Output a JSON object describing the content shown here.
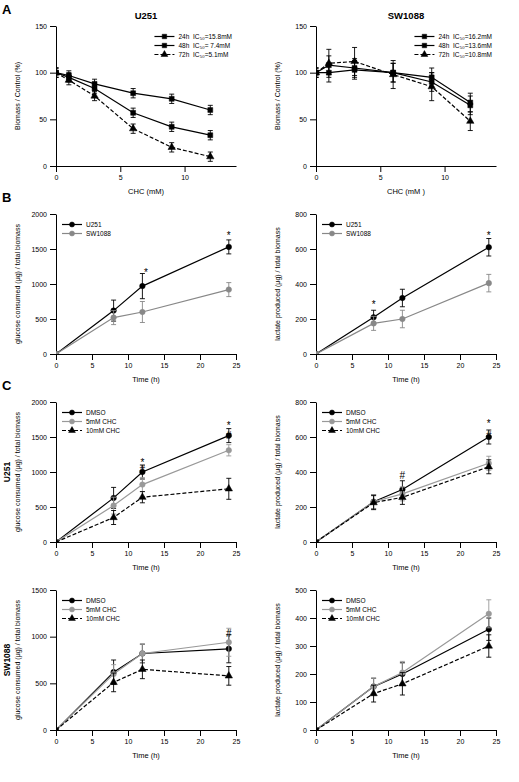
{
  "chart_data": [
    {
      "type": "line",
      "panel_label": "A",
      "title": "U251",
      "x": [
        0,
        1,
        3,
        6,
        9,
        12
      ],
      "series": [
        {
          "name": "24h  IC₅₀=15.8mM",
          "values": [
            100,
            97,
            88,
            78,
            72,
            60
          ],
          "errors": [
            5,
            5,
            5,
            5,
            5,
            5
          ],
          "color": "#000000",
          "line_style": "solid",
          "marker": "square"
        },
        {
          "name": "48h  IC₅₀= 7.4mM",
          "values": [
            100,
            95,
            83,
            57,
            42,
            33
          ],
          "errors": [
            5,
            5,
            5,
            5,
            5,
            5
          ],
          "color": "#000000",
          "line_style": "solid",
          "marker": "square"
        },
        {
          "name": "72h  IC₅₀=5.1mM",
          "values": [
            100,
            92,
            75,
            40,
            20,
            10
          ],
          "errors": [
            5,
            5,
            5,
            5,
            5,
            5
          ],
          "color": "#000000",
          "line_style": "dashed",
          "marker": "triangle"
        }
      ],
      "xlabel": "CHC (mM)",
      "ylabel": "Biomass / Control (%)",
      "xlim": [
        0,
        14
      ],
      "ylim": [
        0,
        150
      ],
      "xticks": [
        0,
        5,
        10
      ],
      "yticks": [
        0,
        50,
        100,
        150
      ],
      "legend": "upper right"
    },
    {
      "type": "line",
      "title": "SW1088",
      "x": [
        0,
        1,
        3,
        6,
        9,
        12
      ],
      "series": [
        {
          "name": "24h  IC₅₀=16.2mM",
          "values": [
            100,
            100,
            103,
            100,
            95,
            68
          ],
          "errors": [
            5,
            10,
            10,
            10,
            10,
            10
          ],
          "color": "#000000",
          "line_style": "solid",
          "marker": "square"
        },
        {
          "name": "48h  IC₅₀=13.6mM",
          "values": [
            100,
            108,
            105,
            100,
            90,
            65
          ],
          "errors": [
            5,
            10,
            10,
            10,
            10,
            10
          ],
          "color": "#000000",
          "line_style": "solid",
          "marker": "square"
        },
        {
          "name": "72h  IC₅₀=10.8mM",
          "values": [
            100,
            110,
            112,
            98,
            85,
            48
          ],
          "errors": [
            5,
            15,
            15,
            15,
            15,
            10
          ],
          "color": "#000000",
          "line_style": "dashed",
          "marker": "triangle"
        }
      ],
      "xlabel": "CHC (mM )",
      "ylabel": "Biomass / Control (%)",
      "xlim": [
        0,
        14
      ],
      "ylim": [
        0,
        150
      ],
      "xticks": [
        0,
        5,
        10
      ],
      "yticks": [
        0,
        50,
        100,
        150
      ],
      "legend": "upper right"
    },
    {
      "type": "line",
      "panel_label": "B",
      "x": [
        0,
        8,
        12,
        24
      ],
      "series": [
        {
          "name": "U251",
          "values": [
            0,
            620,
            970,
            1530
          ],
          "errors": [
            0,
            150,
            180,
            100
          ],
          "color": "#000000",
          "line_style": "solid",
          "marker": "circle"
        },
        {
          "name": "SW1088",
          "values": [
            0,
            520,
            600,
            920
          ],
          "errors": [
            0,
            100,
            150,
            100
          ],
          "color": "#888888",
          "line_style": "solid",
          "marker": "circle"
        }
      ],
      "xlabel": "Time (h)",
      "ylabel": "glucose consumed (μg) / total biomass",
      "xlim": [
        0,
        25
      ],
      "ylim": [
        0,
        2000
      ],
      "xticks": [
        0,
        5,
        10,
        15,
        20,
        25
      ],
      "yticks": [
        0,
        500,
        1000,
        1500,
        2000
      ],
      "annotations": [
        {
          "x": 12.5,
          "y": 1110,
          "text": "*"
        },
        {
          "x": 24,
          "y": 1650,
          "text": "*"
        }
      ],
      "legend": "upper left"
    },
    {
      "type": "line",
      "x": [
        0,
        8,
        12,
        24
      ],
      "series": [
        {
          "name": "U251",
          "values": [
            0,
            210,
            320,
            610
          ],
          "errors": [
            0,
            40,
            50,
            50
          ],
          "color": "#000000",
          "line_style": "solid",
          "marker": "circle"
        },
        {
          "name": "SW1088",
          "values": [
            0,
            175,
            200,
            405
          ],
          "errors": [
            0,
            40,
            50,
            50
          ],
          "color": "#888888",
          "line_style": "solid",
          "marker": "circle"
        }
      ],
      "xlabel": "Time (h)",
      "ylabel": "lactate produced (μg) / total biomass",
      "xlim": [
        0,
        25
      ],
      "ylim": [
        0,
        800
      ],
      "xticks": [
        0,
        5,
        10,
        15,
        20,
        25
      ],
      "yticks": [
        0,
        200,
        400,
        600,
        800
      ],
      "annotations": [
        {
          "x": 8,
          "y": 265,
          "text": "*"
        },
        {
          "x": 24,
          "y": 660,
          "text": "*"
        }
      ],
      "legend": "upper left"
    },
    {
      "type": "line",
      "panel_label": "C",
      "row_label": "U251",
      "x": [
        0,
        8,
        12,
        24
      ],
      "series": [
        {
          "name": "DMSO",
          "values": [
            0,
            630,
            1000,
            1520
          ],
          "errors": [
            0,
            150,
            100,
            100
          ],
          "color": "#000000",
          "line_style": "solid",
          "marker": "circle"
        },
        {
          "name": "5mM CHC",
          "values": [
            0,
            520,
            820,
            1310
          ],
          "errors": [
            0,
            120,
            100,
            80
          ],
          "color": "#999999",
          "line_style": "solid",
          "marker": "circle"
        },
        {
          "name": "10mM CHC",
          "values": [
            0,
            350,
            640,
            760
          ],
          "errors": [
            0,
            100,
            80,
            150
          ],
          "color": "#000000",
          "line_style": "dashed",
          "marker": "triangle"
        }
      ],
      "xlabel": "Time (h)",
      "ylabel": "glucose consumed (μg) / total biomass",
      "xlim": [
        0,
        25
      ],
      "ylim": [
        0,
        2000
      ],
      "xticks": [
        0,
        5,
        10,
        15,
        20,
        25
      ],
      "yticks": [
        0,
        500,
        1000,
        1500,
        2000
      ],
      "annotations": [
        {
          "x": 12,
          "y": 1080,
          "text": "*"
        },
        {
          "x": 12,
          "y": 990,
          "text": "#"
        },
        {
          "x": 24,
          "y": 1610,
          "text": "*"
        },
        {
          "x": 24,
          "y": 1470,
          "text": "#"
        }
      ],
      "legend": "upper left"
    },
    {
      "type": "line",
      "x": [
        0,
        8,
        12,
        24
      ],
      "series": [
        {
          "name": "DMSO",
          "values": [
            0,
            230,
            300,
            600
          ],
          "errors": [
            0,
            40,
            50,
            40
          ],
          "color": "#000000",
          "line_style": "solid",
          "marker": "circle"
        },
        {
          "name": "5mM CHC",
          "values": [
            0,
            230,
            275,
            450
          ],
          "errors": [
            0,
            40,
            40,
            40
          ],
          "color": "#999999",
          "line_style": "solid",
          "marker": "circle"
        },
        {
          "name": "10mM CHC",
          "values": [
            0,
            225,
            255,
            430
          ],
          "errors": [
            0,
            40,
            40,
            40
          ],
          "color": "#000000",
          "line_style": "dashed",
          "marker": "triangle"
        }
      ],
      "xlabel": "Time (h)",
      "ylabel": "lactate produced (μg) / total biomass",
      "xlim": [
        0,
        25
      ],
      "ylim": [
        0,
        800
      ],
      "xticks": [
        0,
        5,
        10,
        15,
        20,
        25
      ],
      "yticks": [
        0,
        200,
        400,
        600,
        800
      ],
      "annotations": [
        {
          "x": 12,
          "y": 360,
          "text": "#"
        },
        {
          "x": 24,
          "y": 655,
          "text": "*"
        },
        {
          "x": 24,
          "y": 590,
          "text": "#"
        }
      ],
      "legend": "upper left"
    },
    {
      "type": "line",
      "row_label": "SW1088",
      "x": [
        0,
        8,
        12,
        24
      ],
      "series": [
        {
          "name": "DMSO",
          "values": [
            0,
            620,
            820,
            870
          ],
          "errors": [
            0,
            130,
            100,
            150
          ],
          "color": "#000000",
          "line_style": "solid",
          "marker": "circle"
        },
        {
          "name": "5mM CHC",
          "values": [
            0,
            600,
            820,
            940
          ],
          "errors": [
            0,
            100,
            100,
            150
          ],
          "color": "#999999",
          "line_style": "solid",
          "marker": "circle"
        },
        {
          "name": "10mM CHC",
          "values": [
            0,
            510,
            650,
            580
          ],
          "errors": [
            0,
            100,
            100,
            100
          ],
          "color": "#000000",
          "line_style": "dashed",
          "marker": "triangle"
        }
      ],
      "xlabel": "Time (h)",
      "ylabel": "glucose consumed (μg) / total biomass",
      "xlim": [
        0,
        25
      ],
      "ylim": [
        0,
        1500
      ],
      "xticks": [
        0,
        5,
        10,
        15,
        20,
        25
      ],
      "yticks": [
        0,
        500,
        1000,
        1500
      ],
      "annotations": [
        {
          "x": 24,
          "y": 1000,
          "text": "#"
        }
      ],
      "legend": "upper left"
    },
    {
      "type": "line",
      "x": [
        0,
        8,
        12,
        24
      ],
      "series": [
        {
          "name": "DMSO",
          "values": [
            0,
            155,
            200,
            360
          ],
          "errors": [
            0,
            30,
            40,
            40
          ],
          "color": "#000000",
          "line_style": "solid",
          "marker": "circle"
        },
        {
          "name": "5mM CHC",
          "values": [
            0,
            155,
            205,
            415
          ],
          "errors": [
            0,
            30,
            40,
            50
          ],
          "color": "#999999",
          "line_style": "solid",
          "marker": "circle"
        },
        {
          "name": "10mM CHC",
          "values": [
            0,
            130,
            165,
            300
          ],
          "errors": [
            0,
            30,
            40,
            40
          ],
          "color": "#000000",
          "line_style": "dashed",
          "marker": "triangle"
        }
      ],
      "xlabel": "Time (h)",
      "ylabel": "lactate produced (μg) / total biomass",
      "xlim": [
        0,
        25
      ],
      "ylim": [
        0,
        500
      ],
      "xticks": [
        0,
        5,
        10,
        15,
        20,
        25
      ],
      "yticks": [
        0,
        100,
        200,
        300,
        400,
        500
      ],
      "legend": "upper left"
    }
  ]
}
